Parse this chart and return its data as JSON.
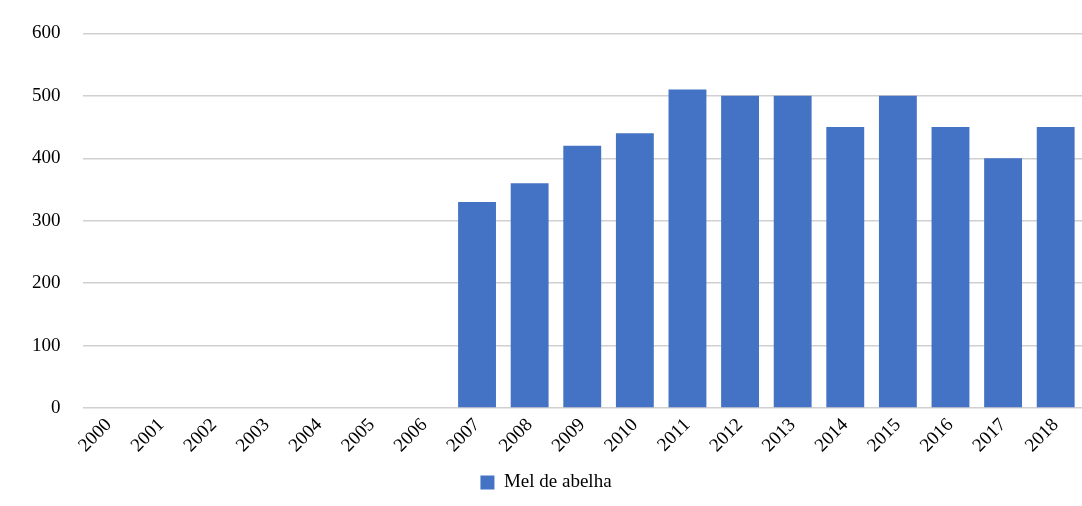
{
  "chart_data": {
    "type": "bar",
    "categories": [
      "2000",
      "2001",
      "2002",
      "2003",
      "2004",
      "2005",
      "2006",
      "2007",
      "2008",
      "2009",
      "2010",
      "2011",
      "2012",
      "2013",
      "2014",
      "2015",
      "2016",
      "2017",
      "2018"
    ],
    "series": [
      {
        "name": "Mel de abelha",
        "color": "#4472c4",
        "values": [
          null,
          null,
          null,
          null,
          null,
          null,
          null,
          330,
          360,
          420,
          440,
          510,
          500,
          500,
          450,
          500,
          450,
          400,
          450
        ]
      }
    ],
    "ylim": [
      0,
      600
    ],
    "yticks": [
      0,
      100,
      200,
      300,
      400,
      500,
      600
    ],
    "grid": "y",
    "legend": "bottom"
  }
}
